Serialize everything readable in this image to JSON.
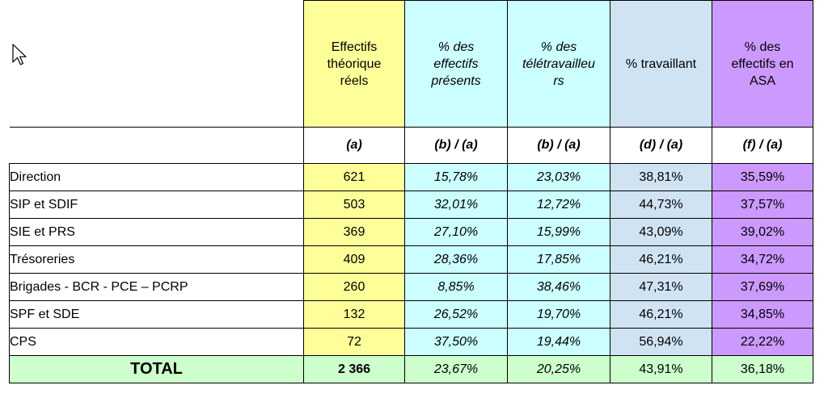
{
  "columns": [
    {
      "header": "Effectifs théorique réels",
      "sub": "(a)"
    },
    {
      "header": "% des effectifs présents",
      "sub": "(b) / (a)"
    },
    {
      "header": "% des télétravailleurs",
      "sub": "(b) / (a)"
    },
    {
      "header": "% travaillant",
      "sub": "(d) / (a)"
    },
    {
      "header": "% des effectifs en ASA",
      "sub": "(f) / (a)"
    }
  ],
  "rows": [
    {
      "label": "Direction",
      "values": [
        "621",
        "15,78%",
        "23,03%",
        "38,81%",
        "35,59%"
      ]
    },
    {
      "label": "SIP et SDIF",
      "values": [
        "503",
        "32,01%",
        "12,72%",
        "44,73%",
        "37,57%"
      ]
    },
    {
      "label": "SIE et PRS",
      "values": [
        "369",
        "27,10%",
        "15,99%",
        "43,09%",
        "39,02%"
      ]
    },
    {
      "label": "Trésoreries",
      "values": [
        "409",
        "28,36%",
        "17,85%",
        "46,21%",
        "34,72%"
      ]
    },
    {
      "label": "Brigades - BCR - PCE – PCRP",
      "values": [
        "260",
        "8,85%",
        "38,46%",
        "47,31%",
        "37,69%"
      ]
    },
    {
      "label": "SPF et SDE",
      "values": [
        "132",
        "26,52%",
        "19,70%",
        "46,21%",
        "34,85%"
      ]
    },
    {
      "label": "CPS",
      "values": [
        "72",
        "37,50%",
        "19,44%",
        "56,94%",
        "22,22%"
      ]
    }
  ],
  "total": {
    "label": "TOTAL",
    "values": [
      "2 366",
      "23,67%",
      "20,25%",
      "43,91%",
      "36,18%"
    ]
  },
  "colors": {
    "yellow": "#ffff99",
    "cyan": "#ccffff",
    "blue": "#cfe3f3",
    "purple": "#cc99ff",
    "green": "#ccffcc"
  },
  "cursor_icon": "arrow-cursor-icon"
}
